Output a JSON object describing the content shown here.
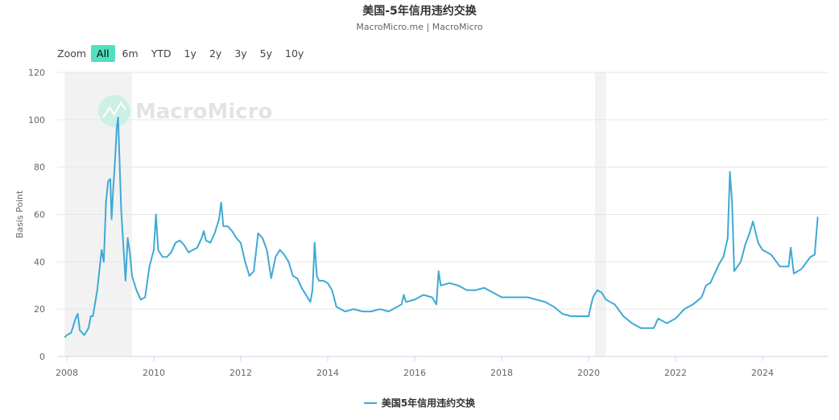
{
  "title": "美国-5年信用违约交换",
  "subtitle": "MacroMicro.me | MacroMicro",
  "watermark": "MacroMicro",
  "zoom": {
    "label": "Zoom",
    "buttons": [
      "All",
      "6m",
      "YTD",
      "1y",
      "2y",
      "3y",
      "5y",
      "10y"
    ],
    "active": "All"
  },
  "chart_data": {
    "type": "line",
    "title": "美国-5年信用违约交换",
    "ylabel": "Basis Point",
    "xlabel": "",
    "ylim": [
      0,
      120
    ],
    "yticks": [
      0,
      20,
      40,
      60,
      80,
      100,
      120
    ],
    "xticks": [
      "2008",
      "2010",
      "2012",
      "2014",
      "2016",
      "2018",
      "2020",
      "2022",
      "2024"
    ],
    "grid": true,
    "legend_placement": "bottom",
    "color": "#3eaad4",
    "recession_bands": [
      [
        2007.95,
        2009.5
      ],
      [
        2020.15,
        2020.4
      ]
    ],
    "series": [
      {
        "name": "美国5年信用违约交换",
        "points": [
          [
            2007.95,
            8
          ],
          [
            2008.0,
            9
          ],
          [
            2008.1,
            10
          ],
          [
            2008.2,
            16
          ],
          [
            2008.25,
            18
          ],
          [
            2008.3,
            11
          ],
          [
            2008.4,
            9
          ],
          [
            2008.5,
            12
          ],
          [
            2008.55,
            17
          ],
          [
            2008.6,
            17
          ],
          [
            2008.7,
            28
          ],
          [
            2008.8,
            45
          ],
          [
            2008.85,
            40
          ],
          [
            2008.9,
            65
          ],
          [
            2008.95,
            74
          ],
          [
            2009.0,
            75
          ],
          [
            2009.03,
            58
          ],
          [
            2009.07,
            72
          ],
          [
            2009.1,
            80
          ],
          [
            2009.15,
            97
          ],
          [
            2009.18,
            101
          ],
          [
            2009.25,
            62
          ],
          [
            2009.3,
            47
          ],
          [
            2009.35,
            32
          ],
          [
            2009.4,
            50
          ],
          [
            2009.45,
            44
          ],
          [
            2009.5,
            34
          ],
          [
            2009.6,
            28
          ],
          [
            2009.7,
            24
          ],
          [
            2009.8,
            25
          ],
          [
            2009.9,
            38
          ],
          [
            2010.0,
            45
          ],
          [
            2010.05,
            60
          ],
          [
            2010.1,
            45
          ],
          [
            2010.2,
            42
          ],
          [
            2010.3,
            42
          ],
          [
            2010.4,
            44
          ],
          [
            2010.5,
            48
          ],
          [
            2010.6,
            49
          ],
          [
            2010.7,
            47
          ],
          [
            2010.8,
            44
          ],
          [
            2010.9,
            45
          ],
          [
            2011.0,
            46
          ],
          [
            2011.1,
            50
          ],
          [
            2011.15,
            53
          ],
          [
            2011.2,
            49
          ],
          [
            2011.3,
            48
          ],
          [
            2011.4,
            52
          ],
          [
            2011.5,
            58
          ],
          [
            2011.55,
            65
          ],
          [
            2011.6,
            55
          ],
          [
            2011.7,
            55
          ],
          [
            2011.8,
            53
          ],
          [
            2011.9,
            50
          ],
          [
            2012.0,
            48
          ],
          [
            2012.1,
            40
          ],
          [
            2012.2,
            34
          ],
          [
            2012.3,
            36
          ],
          [
            2012.4,
            52
          ],
          [
            2012.5,
            50
          ],
          [
            2012.6,
            45
          ],
          [
            2012.7,
            33
          ],
          [
            2012.8,
            42
          ],
          [
            2012.9,
            45
          ],
          [
            2013.0,
            43
          ],
          [
            2013.1,
            40
          ],
          [
            2013.2,
            34
          ],
          [
            2013.3,
            33
          ],
          [
            2013.4,
            29
          ],
          [
            2013.5,
            26
          ],
          [
            2013.6,
            23
          ],
          [
            2013.65,
            28
          ],
          [
            2013.7,
            48
          ],
          [
            2013.75,
            34
          ],
          [
            2013.8,
            32
          ],
          [
            2013.9,
            32
          ],
          [
            2014.0,
            31
          ],
          [
            2014.1,
            28
          ],
          [
            2014.2,
            21
          ],
          [
            2014.3,
            20
          ],
          [
            2014.4,
            19
          ],
          [
            2014.6,
            20
          ],
          [
            2014.8,
            19
          ],
          [
            2015.0,
            19
          ],
          [
            2015.2,
            20
          ],
          [
            2015.4,
            19
          ],
          [
            2015.6,
            21
          ],
          [
            2015.7,
            22
          ],
          [
            2015.75,
            26
          ],
          [
            2015.8,
            23
          ],
          [
            2016.0,
            24
          ],
          [
            2016.2,
            26
          ],
          [
            2016.4,
            25
          ],
          [
            2016.5,
            22
          ],
          [
            2016.55,
            36
          ],
          [
            2016.6,
            30
          ],
          [
            2016.8,
            31
          ],
          [
            2017.0,
            30
          ],
          [
            2017.2,
            28
          ],
          [
            2017.4,
            28
          ],
          [
            2017.6,
            29
          ],
          [
            2017.8,
            27
          ],
          [
            2018.0,
            25
          ],
          [
            2018.2,
            25
          ],
          [
            2018.4,
            25
          ],
          [
            2018.6,
            25
          ],
          [
            2018.8,
            24
          ],
          [
            2019.0,
            23
          ],
          [
            2019.2,
            21
          ],
          [
            2019.4,
            18
          ],
          [
            2019.6,
            17
          ],
          [
            2019.8,
            17
          ],
          [
            2020.0,
            17
          ],
          [
            2020.1,
            25
          ],
          [
            2020.2,
            28
          ],
          [
            2020.3,
            27
          ],
          [
            2020.4,
            24
          ],
          [
            2020.6,
            22
          ],
          [
            2020.8,
            17
          ],
          [
            2021.0,
            14
          ],
          [
            2021.2,
            12
          ],
          [
            2021.4,
            12
          ],
          [
            2021.5,
            12
          ],
          [
            2021.6,
            16
          ],
          [
            2021.7,
            15
          ],
          [
            2021.8,
            14
          ],
          [
            2022.0,
            16
          ],
          [
            2022.2,
            20
          ],
          [
            2022.4,
            22
          ],
          [
            2022.6,
            25
          ],
          [
            2022.7,
            30
          ],
          [
            2022.8,
            31
          ],
          [
            2022.9,
            35
          ],
          [
            2023.0,
            39
          ],
          [
            2023.1,
            42
          ],
          [
            2023.2,
            50
          ],
          [
            2023.25,
            78
          ],
          [
            2023.3,
            65
          ],
          [
            2023.35,
            36
          ],
          [
            2023.5,
            40
          ],
          [
            2023.6,
            47
          ],
          [
            2023.7,
            52
          ],
          [
            2023.78,
            57
          ],
          [
            2023.9,
            48
          ],
          [
            2024.0,
            45
          ],
          [
            2024.2,
            43
          ],
          [
            2024.4,
            38
          ],
          [
            2024.6,
            38
          ],
          [
            2024.65,
            46
          ],
          [
            2024.72,
            35
          ],
          [
            2024.9,
            37
          ],
          [
            2025.1,
            42
          ],
          [
            2025.2,
            43
          ],
          [
            2025.27,
            59
          ]
        ]
      }
    ]
  }
}
